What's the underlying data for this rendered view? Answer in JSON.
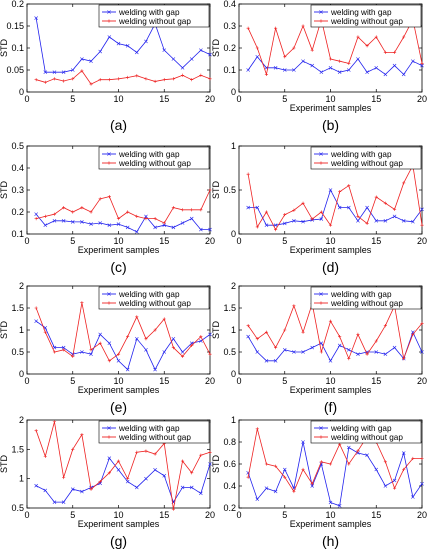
{
  "chart_data": [
    {
      "type": "line",
      "label": "(a)",
      "xlabel": "",
      "ylabel": "STD",
      "xlim": [
        0,
        20
      ],
      "ylim": [
        0,
        0.2
      ],
      "xticks": [
        0,
        5,
        10,
        15,
        20
      ],
      "yticks": [
        0,
        0.05,
        0.1,
        0.15,
        0.2
      ],
      "x": [
        1,
        2,
        3,
        4,
        5,
        6,
        7,
        8,
        9,
        10,
        11,
        12,
        13,
        14,
        15,
        16,
        17,
        18,
        19,
        20
      ],
      "series": [
        {
          "name": "welding with gap",
          "color": "#2222ee",
          "marker": "x",
          "values": [
            0.168,
            0.045,
            0.045,
            0.045,
            0.05,
            0.075,
            0.07,
            0.092,
            0.125,
            0.11,
            0.105,
            0.09,
            0.115,
            0.155,
            0.095,
            0.075,
            0.055,
            0.075,
            0.095,
            0.085
          ]
        },
        {
          "name": "welding without gap",
          "color": "#ee2222",
          "marker": "+",
          "values": [
            0.028,
            0.022,
            0.03,
            0.025,
            0.03,
            0.048,
            0.018,
            0.028,
            0.028,
            0.03,
            0.033,
            0.037,
            0.03,
            0.024,
            0.028,
            0.03,
            0.038,
            0.028,
            0.038,
            0.03
          ]
        }
      ]
    },
    {
      "type": "line",
      "label": "(b)",
      "xlabel": "Experiment samples",
      "ylabel": "STD",
      "xlim": [
        0,
        20
      ],
      "ylim": [
        0,
        0.4
      ],
      "xticks": [
        0,
        5,
        10,
        15,
        20
      ],
      "yticks": [
        0,
        0.1,
        0.2,
        0.3,
        0.4
      ],
      "x": [
        1,
        2,
        3,
        4,
        5,
        6,
        7,
        8,
        9,
        10,
        11,
        12,
        13,
        14,
        15,
        16,
        17,
        18,
        19,
        20
      ],
      "series": [
        {
          "name": "welding with gap",
          "color": "#2222ee",
          "marker": "x",
          "values": [
            0.1,
            0.16,
            0.11,
            0.11,
            0.1,
            0.1,
            0.14,
            0.12,
            0.09,
            0.11,
            0.09,
            0.1,
            0.15,
            0.09,
            0.11,
            0.08,
            0.12,
            0.08,
            0.14,
            0.12
          ]
        },
        {
          "name": "welding without gap",
          "color": "#ee2222",
          "marker": "+",
          "values": [
            0.29,
            0.2,
            0.08,
            0.29,
            0.16,
            0.2,
            0.3,
            0.19,
            0.33,
            0.15,
            0.14,
            0.13,
            0.25,
            0.21,
            0.25,
            0.18,
            0.18,
            0.25,
            0.33,
            0.13
          ]
        }
      ]
    },
    {
      "type": "line",
      "label": "(c)",
      "xlabel": "Experiment samples",
      "ylabel": "STD",
      "xlim": [
        0,
        20
      ],
      "ylim": [
        0.1,
        0.5
      ],
      "xticks": [
        0,
        5,
        10,
        15,
        20
      ],
      "yticks": [
        0.1,
        0.2,
        0.3,
        0.4,
        0.5
      ],
      "x": [
        1,
        2,
        3,
        4,
        5,
        6,
        7,
        8,
        9,
        10,
        11,
        12,
        13,
        14,
        15,
        16,
        17,
        18,
        19,
        20
      ],
      "series": [
        {
          "name": "welding with gap",
          "color": "#2222ee",
          "marker": "x",
          "values": [
            0.19,
            0.14,
            0.16,
            0.16,
            0.155,
            0.155,
            0.145,
            0.15,
            0.14,
            0.145,
            0.13,
            0.11,
            0.18,
            0.13,
            0.14,
            0.13,
            0.15,
            0.17,
            0.12,
            0.12
          ]
        },
        {
          "name": "welding without gap",
          "color": "#ee2222",
          "marker": "+",
          "values": [
            0.17,
            0.18,
            0.19,
            0.22,
            0.2,
            0.22,
            0.2,
            0.26,
            0.27,
            0.17,
            0.2,
            0.18,
            0.17,
            0.17,
            0.15,
            0.22,
            0.21,
            0.21,
            0.21,
            0.3
          ]
        }
      ]
    },
    {
      "type": "line",
      "label": "(d)",
      "xlabel": "Experiment samples",
      "ylabel": "STD",
      "xlim": [
        0,
        20
      ],
      "ylim": [
        0,
        1
      ],
      "xticks": [
        0,
        5,
        10,
        15,
        20
      ],
      "yticks": [
        0,
        0.5,
        1
      ],
      "x": [
        1,
        2,
        3,
        4,
        5,
        6,
        7,
        8,
        9,
        10,
        11,
        12,
        13,
        14,
        15,
        16,
        17,
        18,
        19,
        20
      ],
      "series": [
        {
          "name": "welding with gap",
          "color": "#2222ee",
          "marker": "x",
          "values": [
            0.3,
            0.3,
            0.1,
            0.1,
            0.12,
            0.15,
            0.14,
            0.16,
            0.17,
            0.5,
            0.3,
            0.3,
            0.15,
            0.3,
            0.15,
            0.15,
            0.2,
            0.15,
            0.14,
            0.28
          ]
        },
        {
          "name": "welding without gap",
          "color": "#ee2222",
          "marker": "+",
          "values": [
            0.68,
            0.08,
            0.25,
            0.05,
            0.22,
            0.27,
            0.35,
            0.17,
            0.25,
            0.1,
            0.48,
            0.55,
            0.2,
            0.12,
            0.42,
            0.35,
            0.28,
            0.58,
            0.78,
            0.1
          ]
        }
      ]
    },
    {
      "type": "line",
      "label": "(e)",
      "xlabel": "Experiment samples",
      "ylabel": "STD",
      "xlim": [
        0,
        20
      ],
      "ylim": [
        0,
        2
      ],
      "xticks": [
        0,
        5,
        10,
        15,
        20
      ],
      "yticks": [
        0,
        0.5,
        1,
        1.5,
        2
      ],
      "x": [
        1,
        2,
        3,
        4,
        5,
        6,
        7,
        8,
        9,
        10,
        11,
        12,
        13,
        14,
        15,
        16,
        17,
        18,
        19,
        20
      ],
      "series": [
        {
          "name": "welding with gap",
          "color": "#2222ee",
          "marker": "x",
          "values": [
            1.2,
            1.05,
            0.6,
            0.6,
            0.45,
            0.5,
            0.45,
            0.9,
            0.7,
            0.3,
            0.1,
            0.8,
            0.55,
            0.1,
            0.5,
            0.8,
            0.5,
            0.7,
            0.75,
            0.9
          ]
        },
        {
          "name": "welding without gap",
          "color": "#ee2222",
          "marker": "+",
          "values": [
            1.5,
            0.95,
            0.5,
            0.55,
            0.4,
            1.62,
            0.55,
            0.7,
            0.3,
            0.45,
            0.85,
            1.3,
            0.8,
            1.0,
            1.25,
            0.6,
            0.4,
            0.65,
            0.85,
            0.45
          ]
        }
      ]
    },
    {
      "type": "line",
      "label": "(f)",
      "xlabel": "Experiment samples",
      "ylabel": "STD",
      "xlim": [
        0,
        20
      ],
      "ylim": [
        0,
        2
      ],
      "xticks": [
        0,
        5,
        10,
        15,
        20
      ],
      "yticks": [
        0,
        0.5,
        1,
        1.5,
        2
      ],
      "x": [
        1,
        2,
        3,
        4,
        5,
        6,
        7,
        8,
        9,
        10,
        11,
        12,
        13,
        14,
        15,
        16,
        17,
        18,
        19,
        20
      ],
      "series": [
        {
          "name": "welding with gap",
          "color": "#2222ee",
          "marker": "x",
          "values": [
            0.85,
            0.5,
            0.3,
            0.3,
            0.55,
            0.5,
            0.5,
            0.6,
            0.7,
            0.3,
            0.65,
            0.55,
            0.45,
            0.5,
            0.5,
            0.45,
            0.6,
            0.35,
            0.95,
            0.5
          ]
        },
        {
          "name": "welding without gap",
          "color": "#ee2222",
          "marker": "+",
          "values": [
            1.1,
            0.8,
            0.95,
            0.6,
            1.0,
            1.55,
            0.95,
            1.6,
            0.5,
            1.2,
            0.85,
            0.35,
            0.9,
            0.45,
            0.75,
            1.1,
            1.55,
            0.35,
            0.9,
            1.15
          ]
        }
      ]
    },
    {
      "type": "line",
      "label": "(g)",
      "xlabel": "Experiment samples",
      "ylabel": "STD",
      "xlim": [
        0,
        20
      ],
      "ylim": [
        0.5,
        2
      ],
      "xticks": [
        0,
        5,
        10,
        15,
        20
      ],
      "yticks": [
        0.5,
        1,
        1.5,
        2
      ],
      "x": [
        1,
        2,
        3,
        4,
        5,
        6,
        7,
        8,
        9,
        10,
        11,
        12,
        13,
        14,
        15,
        16,
        17,
        18,
        19,
        20
      ],
      "series": [
        {
          "name": "welding with gap",
          "color": "#2222ee",
          "marker": "x",
          "values": [
            0.88,
            0.8,
            0.6,
            0.6,
            0.82,
            0.78,
            0.85,
            0.92,
            1.35,
            1.15,
            0.95,
            0.85,
            1.0,
            1.15,
            1.05,
            0.6,
            0.85,
            0.85,
            0.75,
            1.25
          ]
        },
        {
          "name": "welding without gap",
          "color": "#ee2222",
          "marker": "+",
          "values": [
            1.82,
            1.38,
            1.97,
            1.02,
            1.5,
            1.75,
            0.82,
            0.95,
            1.1,
            1.3,
            1.0,
            1.45,
            1.47,
            1.42,
            1.6,
            0.48,
            1.3,
            1.1,
            1.4,
            1.45
          ]
        }
      ]
    },
    {
      "type": "line",
      "label": "(h)",
      "xlabel": "Experiment samples",
      "ylabel": "STD",
      "xlim": [
        0,
        20
      ],
      "ylim": [
        0.2,
        1
      ],
      "xticks": [
        0,
        5,
        10,
        15,
        20
      ],
      "yticks": [
        0.2,
        0.4,
        0.6,
        0.8,
        1
      ],
      "x": [
        1,
        2,
        3,
        4,
        5,
        6,
        7,
        8,
        9,
        10,
        11,
        12,
        13,
        14,
        15,
        16,
        17,
        18,
        19,
        20
      ],
      "series": [
        {
          "name": "welding with gap",
          "color": "#2222ee",
          "marker": "x",
          "values": [
            0.52,
            0.28,
            0.38,
            0.35,
            0.55,
            0.38,
            0.8,
            0.4,
            0.6,
            0.25,
            0.22,
            0.75,
            0.7,
            0.68,
            0.55,
            0.4,
            0.45,
            0.7,
            0.3,
            0.42
          ]
        },
        {
          "name": "welding without gap",
          "color": "#ee2222",
          "marker": "+",
          "values": [
            0.48,
            0.92,
            0.6,
            0.58,
            0.48,
            0.35,
            0.55,
            0.42,
            0.62,
            0.6,
            0.78,
            0.6,
            0.72,
            0.85,
            0.8,
            0.62,
            0.38,
            0.55,
            0.65,
            0.65
          ]
        }
      ]
    }
  ]
}
